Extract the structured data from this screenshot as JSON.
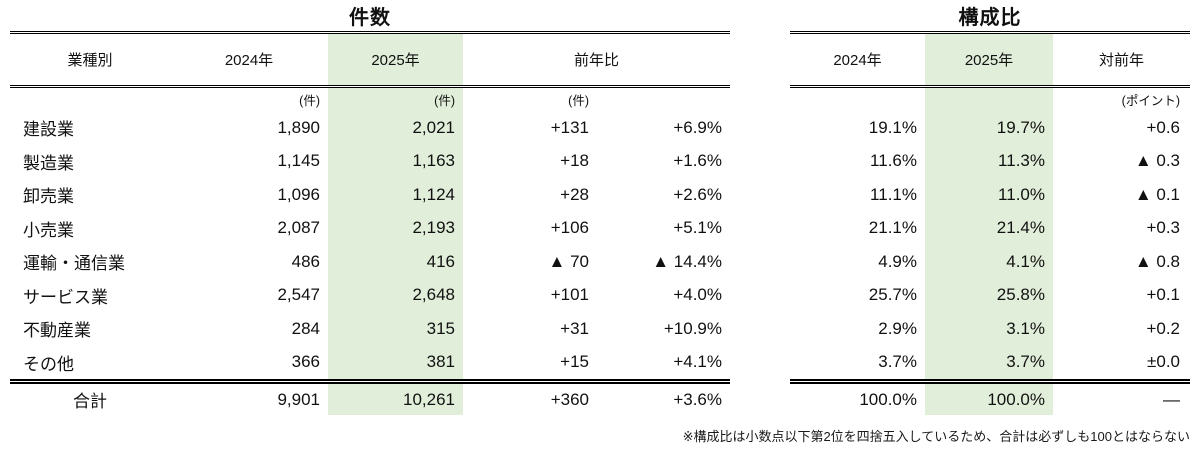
{
  "left_table": {
    "title": "件数",
    "columns": {
      "label": "業種別",
      "y2024": "2024年",
      "y2025": "2025年",
      "yoy": "前年比"
    },
    "units": {
      "y2024": "(件)",
      "y2025": "(件)",
      "diff": "(件)"
    },
    "rows": [
      {
        "label": "建設業",
        "y2024": "1,890",
        "y2025": "2,021",
        "diff": "+131",
        "pct": "+6.9%"
      },
      {
        "label": "製造業",
        "y2024": "1,145",
        "y2025": "1,163",
        "diff": "+18",
        "pct": "+1.6%"
      },
      {
        "label": "卸売業",
        "y2024": "1,096",
        "y2025": "1,124",
        "diff": "+28",
        "pct": "+2.6%"
      },
      {
        "label": "小売業",
        "y2024": "2,087",
        "y2025": "2,193",
        "diff": "+106",
        "pct": "+5.1%"
      },
      {
        "label": "運輸・通信業",
        "y2024": "486",
        "y2025": "416",
        "diff": "▲ 70",
        "pct": "▲ 14.4%"
      },
      {
        "label": "サービス業",
        "y2024": "2,547",
        "y2025": "2,648",
        "diff": "+101",
        "pct": "+4.0%"
      },
      {
        "label": "不動産業",
        "y2024": "284",
        "y2025": "315",
        "diff": "+31",
        "pct": "+10.9%"
      },
      {
        "label": "その他",
        "y2024": "366",
        "y2025": "381",
        "diff": "+15",
        "pct": "+4.1%"
      }
    ],
    "total": {
      "label": "合計",
      "y2024": "9,901",
      "y2025": "10,261",
      "diff": "+360",
      "pct": "+3.6%"
    }
  },
  "right_table": {
    "title": "構成比",
    "columns": {
      "y2024": "2024年",
      "y2025": "2025年",
      "yoy": "対前年"
    },
    "units": {
      "yoy": "(ポイント)"
    },
    "rows": [
      {
        "y2024": "19.1%",
        "y2025": "19.7%",
        "diff": "+0.6"
      },
      {
        "y2024": "11.6%",
        "y2025": "11.3%",
        "diff": "▲ 0.3"
      },
      {
        "y2024": "11.1%",
        "y2025": "11.0%",
        "diff": "▲ 0.1"
      },
      {
        "y2024": "21.1%",
        "y2025": "21.4%",
        "diff": "+0.3"
      },
      {
        "y2024": "4.9%",
        "y2025": "4.1%",
        "diff": "▲ 0.8"
      },
      {
        "y2024": "25.7%",
        "y2025": "25.8%",
        "diff": "+0.1"
      },
      {
        "y2024": "2.9%",
        "y2025": "3.1%",
        "diff": "+0.2"
      },
      {
        "y2024": "3.7%",
        "y2025": "3.7%",
        "diff": "±0.0"
      }
    ],
    "total": {
      "y2024": "100.0%",
      "y2025": "100.0%",
      "diff": "—"
    }
  },
  "footnote": "※構成比は小数点以下第2位を四捨五入しているため、合計は必ずしも100とはならない",
  "colors": {
    "highlight_green": "#e1eed9",
    "text": "#111111"
  }
}
